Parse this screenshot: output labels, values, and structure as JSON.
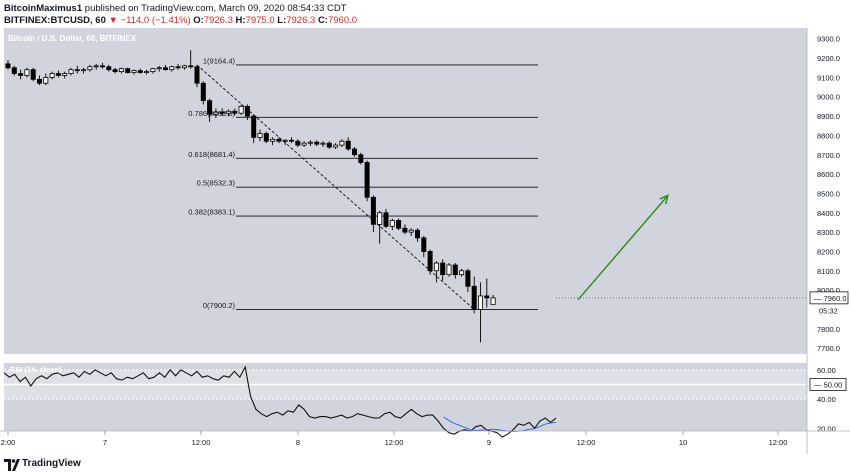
{
  "header": {
    "author": "BitcoinMaximus1",
    "published_text": "published on TradingView.com, March 09, 2020 08:54:33 CDT",
    "symbol": "BITFINEX:BTCUSD, 60",
    "change": "▼ −114.0 (−1.41%)",
    "o_label": "O:",
    "o_value": "7926.3",
    "h_label": "H:",
    "h_value": "7975.0",
    "l_label": "L:",
    "l_value": "7926.3",
    "c_label": "C:",
    "c_value": "7960.0"
  },
  "footer": {
    "brand": "TradingView"
  },
  "colors": {
    "background": "#d1d4dc",
    "rsi_band": "#dde0e6",
    "candle": "#000000",
    "arrow": "#2e8b1f",
    "rsi_ma": "#2962ff"
  },
  "chart_data": {
    "type": "candlestick",
    "title": "Bitcoin / U.S. Dollar, 60, BITFINEX",
    "y_ticks": [
      "9300.0",
      "9200.0",
      "9100.0",
      "9000.0",
      "8900.0",
      "8800.0",
      "8700.0",
      "8600.0",
      "8500.0",
      "8400.0",
      "8300.0",
      "8200.0",
      "8100.0",
      "8000.0",
      "7800.0",
      "7700.0"
    ],
    "ylim": [
      7680,
      9340
    ],
    "x_ticks": [
      "2:00",
      "7",
      "12:00",
      "8",
      "12:00",
      "9",
      "12:00",
      "10",
      "12:00"
    ],
    "last_price": "7960.0",
    "countdown": "05:32",
    "fib_levels": [
      {
        "label": "1(9164.4)",
        "value": 9164.4
      },
      {
        "label": "0.786(8893.8)",
        "value": 8893.8
      },
      {
        "label": "0.618(8681.4)",
        "value": 8681.4
      },
      {
        "label": "0.5(8532.3)",
        "value": 8532.3
      },
      {
        "label": "0.382(8383.1)",
        "value": 8383.1
      },
      {
        "label": "0(7900.2)",
        "value": 7900.2
      }
    ],
    "candles": [
      [
        9170,
        9190,
        9140,
        9150
      ],
      [
        9150,
        9160,
        9110,
        9120
      ],
      [
        9120,
        9140,
        9090,
        9110
      ],
      [
        9110,
        9150,
        9100,
        9140
      ],
      [
        9140,
        9150,
        9080,
        9090
      ],
      [
        9090,
        9110,
        9060,
        9070
      ],
      [
        9070,
        9120,
        9060,
        9100
      ],
      [
        9100,
        9130,
        9090,
        9120
      ],
      [
        9120,
        9135,
        9100,
        9110
      ],
      [
        9110,
        9130,
        9095,
        9120
      ],
      [
        9120,
        9150,
        9110,
        9140
      ],
      [
        9140,
        9160,
        9120,
        9135
      ],
      [
        9135,
        9150,
        9120,
        9140
      ],
      [
        9140,
        9165,
        9130,
        9155
      ],
      [
        9155,
        9170,
        9140,
        9160
      ],
      [
        9160,
        9175,
        9145,
        9155
      ],
      [
        9155,
        9165,
        9130,
        9140
      ],
      [
        9140,
        9150,
        9120,
        9130
      ],
      [
        9130,
        9150,
        9120,
        9145
      ],
      [
        9145,
        9150,
        9120,
        9125
      ],
      [
        9125,
        9140,
        9115,
        9135
      ],
      [
        9135,
        9145,
        9120,
        9125
      ],
      [
        9125,
        9140,
        9115,
        9130
      ],
      [
        9130,
        9150,
        9120,
        9145
      ],
      [
        9145,
        9160,
        9130,
        9150
      ],
      [
        9150,
        9165,
        9135,
        9140
      ],
      [
        9140,
        9160,
        9130,
        9155
      ],
      [
        9155,
        9170,
        9140,
        9150
      ],
      [
        9150,
        9165,
        9140,
        9160
      ],
      [
        9160,
        9240,
        9145,
        9155
      ],
      [
        9155,
        9160,
        9050,
        9070
      ],
      [
        9070,
        9080,
        8960,
        8980
      ],
      [
        8980,
        8990,
        8870,
        8910
      ],
      [
        8910,
        8940,
        8890,
        8920
      ],
      [
        8920,
        8940,
        8900,
        8915
      ],
      [
        8915,
        8935,
        8900,
        8925
      ],
      [
        8925,
        8940,
        8905,
        8915
      ],
      [
        8915,
        8960,
        8905,
        8950
      ],
      [
        8950,
        8960,
        8880,
        8900
      ],
      [
        8900,
        8910,
        8760,
        8790
      ],
      [
        8790,
        8830,
        8770,
        8810
      ],
      [
        8810,
        8820,
        8760,
        8770
      ],
      [
        8770,
        8790,
        8750,
        8780
      ],
      [
        8780,
        8790,
        8760,
        8770
      ],
      [
        8770,
        8780,
        8750,
        8775
      ],
      [
        8775,
        8790,
        8760,
        8770
      ],
      [
        8770,
        8780,
        8740,
        8750
      ],
      [
        8750,
        8770,
        8740,
        8760
      ],
      [
        8760,
        8775,
        8745,
        8765
      ],
      [
        8765,
        8775,
        8745,
        8755
      ],
      [
        8755,
        8770,
        8740,
        8760
      ],
      [
        8760,
        8770,
        8730,
        8740
      ],
      [
        8740,
        8760,
        8730,
        8750
      ],
      [
        8750,
        8780,
        8740,
        8770
      ],
      [
        8770,
        8790,
        8720,
        8730
      ],
      [
        8730,
        8740,
        8690,
        8700
      ],
      [
        8700,
        8710,
        8650,
        8660
      ],
      [
        8660,
        8670,
        8460,
        8480
      ],
      [
        8480,
        8490,
        8300,
        8340
      ],
      [
        8340,
        8410,
        8240,
        8400
      ],
      [
        8400,
        8420,
        8320,
        8330
      ],
      [
        8330,
        8370,
        8310,
        8360
      ],
      [
        8360,
        8370,
        8310,
        8320
      ],
      [
        8320,
        8340,
        8290,
        8300
      ],
      [
        8300,
        8320,
        8280,
        8310
      ],
      [
        8310,
        8320,
        8250,
        8270
      ],
      [
        8270,
        8280,
        8170,
        8200
      ],
      [
        8200,
        8210,
        8080,
        8100
      ],
      [
        8100,
        8150,
        8040,
        8140
      ],
      [
        8140,
        8160,
        8050,
        8080
      ],
      [
        8080,
        8140,
        8070,
        8130
      ],
      [
        8130,
        8140,
        8060,
        8080
      ],
      [
        8080,
        8110,
        8070,
        8100
      ],
      [
        8100,
        8110,
        7990,
        8020
      ],
      [
        8020,
        8070,
        7880,
        7900
      ],
      [
        7900,
        8040,
        7730,
        7970
      ],
      [
        7970,
        8060,
        7910,
        7960
      ],
      [
        7926.3,
        7975,
        7926.3,
        7960
      ]
    ],
    "rsi": {
      "label": "RSI (14, close)",
      "levels": [
        "60.00",
        "50.00",
        "40.00",
        "20.00"
      ],
      "ylim": [
        0,
        80
      ],
      "values": [
        58,
        55,
        57,
        52,
        55,
        49,
        54,
        56,
        54,
        57,
        58,
        56,
        57,
        58,
        55,
        59,
        57,
        60,
        58,
        56,
        58,
        54,
        53,
        55,
        54,
        56,
        58,
        54,
        55,
        58,
        55,
        60,
        56,
        60,
        58,
        56,
        59,
        55,
        56,
        54,
        53,
        56,
        55,
        59,
        55,
        62,
        42,
        33,
        30,
        28,
        30,
        31,
        29,
        32,
        31,
        36,
        33,
        28,
        27,
        28,
        28,
        27,
        28,
        29,
        27,
        28,
        30,
        29,
        28,
        27,
        27,
        30,
        31,
        28,
        27,
        30,
        33,
        30,
        28,
        29,
        29,
        25,
        20,
        17,
        16,
        18,
        19,
        18,
        21,
        22,
        19,
        18,
        17,
        14,
        16,
        19,
        23,
        22,
        24,
        20,
        25,
        27,
        24,
        27
      ]
    }
  }
}
